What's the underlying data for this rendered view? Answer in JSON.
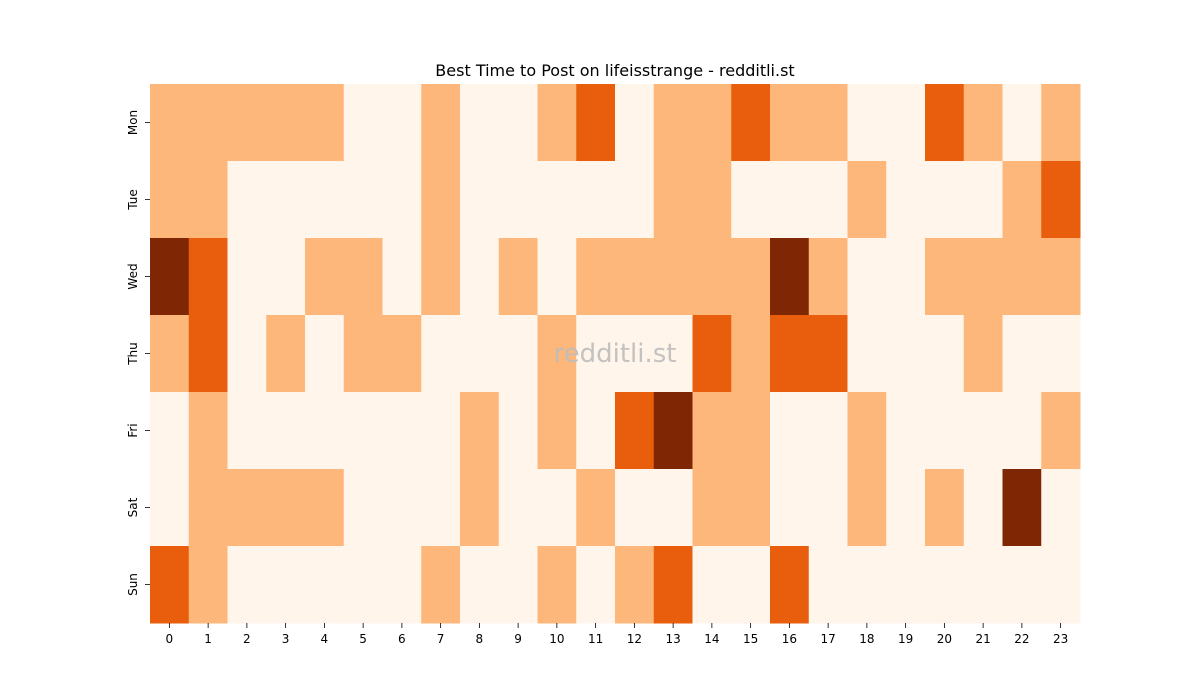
{
  "chart_data": {
    "type": "heatmap",
    "title": "Best Time to Post on lifeisstrange - redditli.st",
    "watermark": "redditli.st",
    "xlabel": "",
    "ylabel": "",
    "x_categories": [
      "0",
      "1",
      "2",
      "3",
      "4",
      "5",
      "6",
      "7",
      "8",
      "9",
      "10",
      "11",
      "12",
      "13",
      "14",
      "15",
      "16",
      "17",
      "18",
      "19",
      "20",
      "21",
      "22",
      "23"
    ],
    "y_categories": [
      "Mon",
      "Tue",
      "Wed",
      "Thu",
      "Fri",
      "Sat",
      "Sun"
    ],
    "values": [
      [
        1,
        1,
        1,
        1,
        1,
        0,
        0,
        1,
        0,
        0,
        1,
        2,
        0,
        1,
        1,
        2,
        1,
        1,
        0,
        0,
        2,
        1,
        0,
        1
      ],
      [
        1,
        1,
        0,
        0,
        0,
        0,
        0,
        1,
        0,
        0,
        0,
        0,
        0,
        1,
        1,
        0,
        0,
        0,
        1,
        0,
        0,
        0,
        1,
        2
      ],
      [
        3,
        2,
        0,
        0,
        1,
        1,
        0,
        1,
        0,
        1,
        0,
        1,
        1,
        1,
        1,
        1,
        3,
        1,
        0,
        0,
        1,
        1,
        1,
        1
      ],
      [
        1,
        2,
        0,
        1,
        0,
        1,
        1,
        0,
        0,
        0,
        1,
        0,
        0,
        0,
        2,
        1,
        2,
        2,
        0,
        0,
        0,
        1,
        0,
        0
      ],
      [
        0,
        1,
        0,
        0,
        0,
        0,
        0,
        0,
        1,
        0,
        1,
        0,
        2,
        3,
        1,
        1,
        0,
        0,
        1,
        0,
        0,
        0,
        0,
        1
      ],
      [
        0,
        1,
        1,
        1,
        1,
        0,
        0,
        0,
        1,
        0,
        0,
        1,
        0,
        0,
        1,
        1,
        0,
        0,
        1,
        0,
        1,
        0,
        3,
        0
      ],
      [
        2,
        1,
        0,
        0,
        0,
        0,
        0,
        1,
        0,
        0,
        1,
        0,
        1,
        2,
        0,
        0,
        2,
        0,
        0,
        0,
        0,
        0,
        0,
        0
      ]
    ],
    "colorscale": [
      "#fff5eb",
      "#fdb77a",
      "#e95e0d",
      "#7f2704"
    ],
    "colorbar": false,
    "grid": false
  }
}
